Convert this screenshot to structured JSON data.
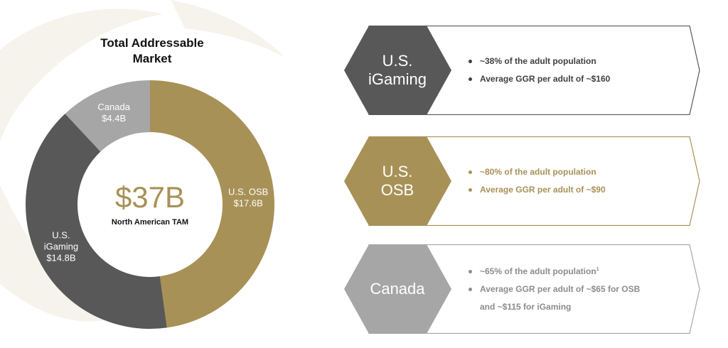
{
  "chart_data": {
    "type": "donut",
    "title_line1": "Total Addressable",
    "title_line2": "Market",
    "center_value": "$37B",
    "center_label": "North American TAM",
    "slices": [
      {
        "name_line1": "U.S. OSB",
        "name_line2": "",
        "value_label": "$17.6B",
        "value": 17.6,
        "color": "#a89157"
      },
      {
        "name_line1": "U.S.",
        "name_line2": "iGaming",
        "value_label": "$14.8B",
        "value": 14.8,
        "color": "#585858"
      },
      {
        "name_line1": "Canada",
        "name_line2": "",
        "value_label": "$4.4B",
        "value": 4.4,
        "color": "#a6a6a6"
      }
    ]
  },
  "panels": [
    {
      "id": "us-igaming",
      "title_line1": "U.S.",
      "title_line2": "iGaming",
      "hex_color": "#585858",
      "border_color": "#585858",
      "text_color": "#404040",
      "bullets": [
        {
          "text": "~38% of the adult population"
        },
        {
          "text": "Average GGR per adult of ~$160"
        }
      ]
    },
    {
      "id": "us-osb",
      "title_line1": "U.S.",
      "title_line2": "OSB",
      "hex_color": "#a89157",
      "border_color": "#a89157",
      "text_color": "#a89157",
      "bullets": [
        {
          "text": "~80% of the adult population"
        },
        {
          "text": "Average GGR per adult of ~$90"
        }
      ]
    },
    {
      "id": "canada",
      "title_line1": "Canada",
      "title_line2": "",
      "hex_color": "#a6a6a6",
      "border_color": "#a6a6a6",
      "text_color": "#8c8c8c",
      "bullets": [
        {
          "text": "~65% of the adult population",
          "sup": "1"
        },
        {
          "text": "Average GGR per adult of ~$65 for OSB",
          "cont": "and ~$115 for iGaming"
        }
      ]
    }
  ]
}
